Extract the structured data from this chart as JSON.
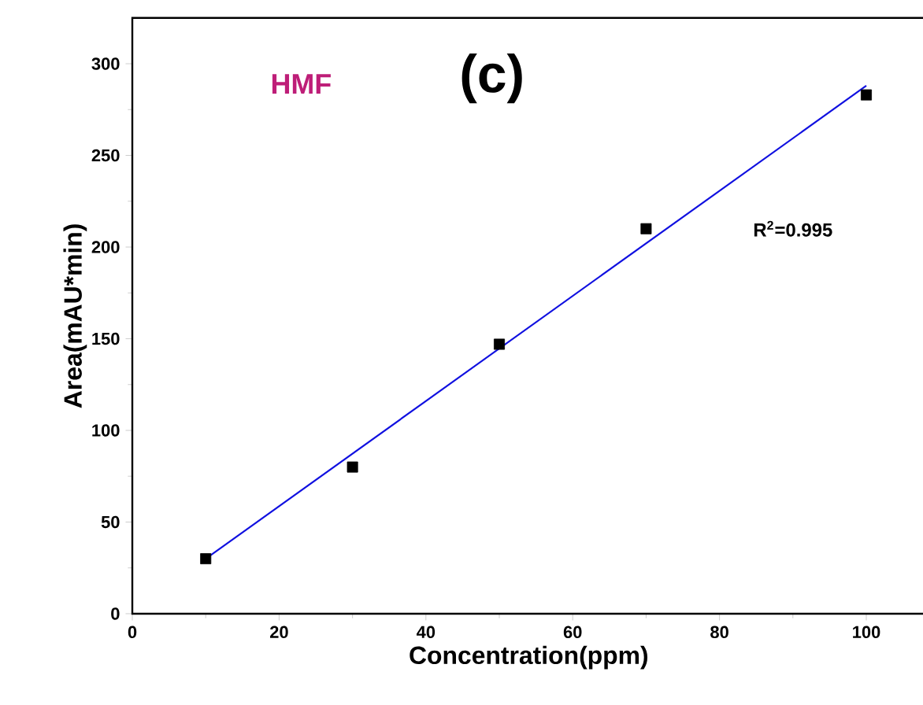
{
  "chart_data": {
    "type": "scatter",
    "xlabel": "Concentration(ppm)",
    "ylabel": "Area(mAU*min)",
    "annotations": [
      "HMF",
      "(c)",
      "R$^{2}$=0.995"
    ],
    "xlim": [
      0,
      108
    ],
    "ylim": [
      0,
      325
    ],
    "xticks": [
      0,
      20,
      40,
      60,
      80,
      100
    ],
    "yticks": [
      0,
      50,
      100,
      150,
      200,
      250,
      300
    ],
    "marker": "square",
    "grid": false,
    "series": [
      {
        "color": "#000000",
        "x": [
          10,
          30,
          50,
          70,
          100
        ],
        "values": [
          30,
          80,
          147,
          210,
          283
        ]
      },
      {
        "type": "line",
        "color": "#1010e0",
        "marker": "none",
        "x": [
          10,
          100
        ],
        "values": [
          30,
          288
        ]
      }
    ]
  }
}
